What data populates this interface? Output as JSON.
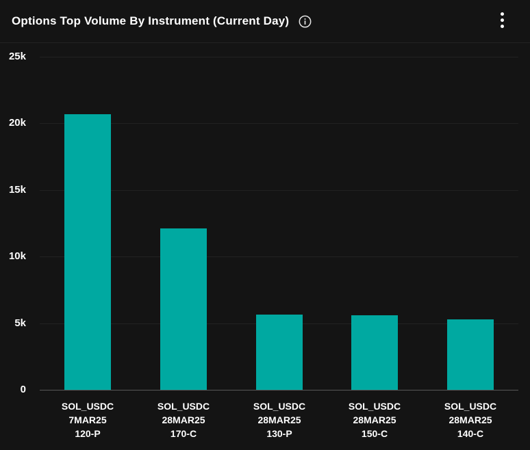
{
  "header": {
    "title": "Options Top Volume By Instrument (Current Day)",
    "info_icon": "info-circle-icon",
    "menu_icon": "kebab-vertical-icon"
  },
  "colors": {
    "background": "#141414",
    "bar": "#00A9A1",
    "gridline": "#222222",
    "zero_axis": "#585858",
    "text": "#ffffff"
  },
  "chart_data": {
    "type": "bar",
    "title": "Options Top Volume By Instrument (Current Day)",
    "categories": [
      [
        "SOL_USDC",
        "7MAR25",
        "120-P"
      ],
      [
        "SOL_USDC",
        "28MAR25",
        "170-C"
      ],
      [
        "SOL_USDC",
        "28MAR25",
        "130-P"
      ],
      [
        "SOL_USDC",
        "28MAR25",
        "150-C"
      ],
      [
        "SOL_USDC",
        "28MAR25",
        "140-C"
      ]
    ],
    "values": [
      20700,
      12100,
      5650,
      5600,
      5300
    ],
    "xlabel": "",
    "ylabel": "",
    "ylim": [
      0,
      25000
    ],
    "yticks": [
      {
        "value": 0,
        "label": "0"
      },
      {
        "value": 5000,
        "label": "5k"
      },
      {
        "value": 10000,
        "label": "10k"
      },
      {
        "value": 15000,
        "label": "15k"
      },
      {
        "value": 20000,
        "label": "20k"
      },
      {
        "value": 25000,
        "label": "25k"
      }
    ],
    "grid": true,
    "legend": "none",
    "bar_color": "#00A9A1"
  }
}
